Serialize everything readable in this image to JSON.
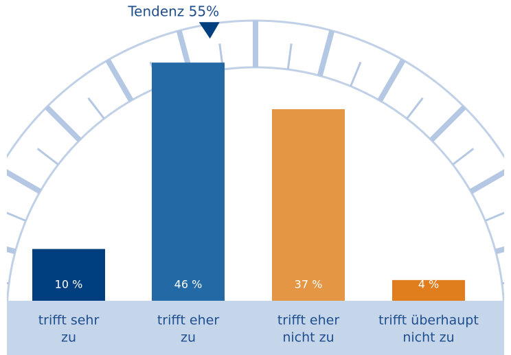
{
  "chart_data": {
    "type": "bar",
    "categories": [
      [
        "trifft sehr",
        "zu"
      ],
      [
        "trifft eher",
        "zu"
      ],
      [
        "trifft eher",
        "nicht zu"
      ],
      [
        "trifft überhaupt",
        "nicht zu"
      ]
    ],
    "values": [
      10,
      46,
      37,
      4
    ],
    "value_labels": [
      "10 %",
      "46 %",
      "37 %",
      "4 %"
    ],
    "colors": [
      "#003f7f",
      "#2369a6",
      "#e59645",
      "#e07e1e"
    ],
    "annotation": {
      "value": 55,
      "label": "Tendenz 55%"
    }
  }
}
